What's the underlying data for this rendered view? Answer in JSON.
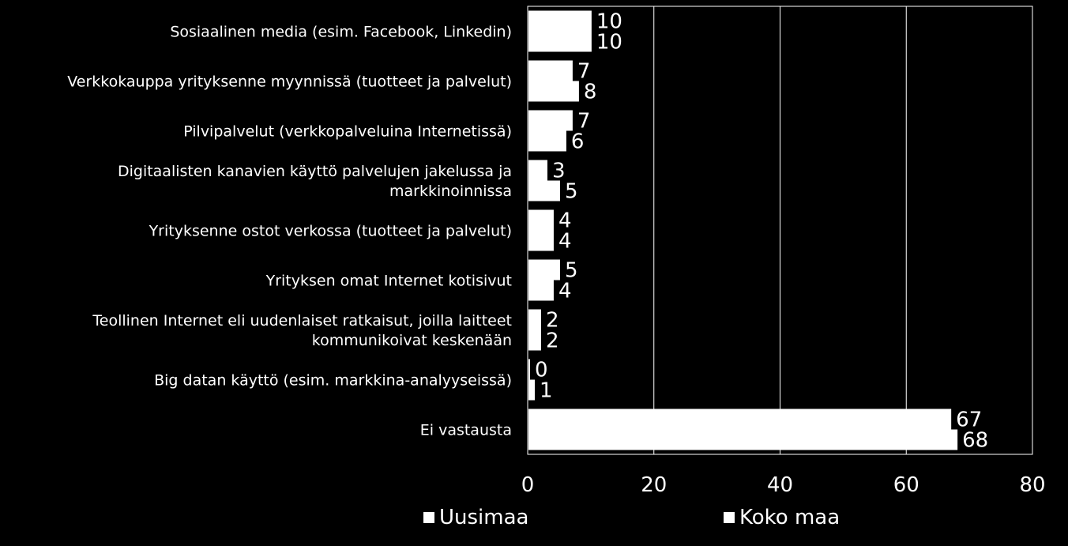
{
  "chart_data": {
    "type": "bar",
    "orientation": "horizontal",
    "categories": [
      "Sosiaalinen media (esim. Facebook, Linkedin)",
      "Verkkokauppa yrityksenne myynnissä (tuotteet ja palvelut)",
      "Pilvipalvelut  (verkkopalveluina Internetissä)",
      "Digitaalisten kanavien käyttö palvelujen jakelussa ja markkinoinnissa",
      "Yrityksenne ostot verkossa (tuotteet ja palvelut)",
      "Yrityksen omat Internet kotisivut",
      "Teollinen Internet eli uudenlaiset ratkaisut, joilla laitteet kommunikoivat keskenään",
      "Big datan käyttö (esim. markkina-analyyseissä)",
      "Ei vastausta"
    ],
    "category_lines": [
      [
        "Sosiaalinen media (esim. Facebook, Linkedin)"
      ],
      [
        "Verkkokauppa yrityksenne myynnissä (tuotteet ja palvelut)"
      ],
      [
        "Pilvipalvelut  (verkkopalveluina Internetissä)"
      ],
      [
        "Digitaalisten kanavien käyttö palvelujen jakelussa ja",
        "markkinoinnissa"
      ],
      [
        "Yrityksenne ostot verkossa (tuotteet ja palvelut)"
      ],
      [
        "Yrityksen omat Internet kotisivut"
      ],
      [
        "Teollinen Internet eli uudenlaiset ratkaisut, joilla laitteet",
        "kommunikoivat keskenään"
      ],
      [
        "Big datan käyttö (esim. markkina-analyyseissä)"
      ],
      [
        "Ei vastausta"
      ]
    ],
    "series": [
      {
        "name": "Uusimaa",
        "values": [
          10,
          7,
          7,
          3,
          4,
          5,
          2,
          0,
          67
        ],
        "labels": [
          "10",
          "7",
          "7",
          "3",
          "4",
          "5",
          "2",
          "0",
          "67"
        ]
      },
      {
        "name": "Koko maa",
        "values": [
          10,
          8,
          6,
          5,
          4,
          4,
          2,
          1,
          68
        ],
        "labels": [
          "10",
          "8",
          "6",
          "5",
          "4",
          "4",
          "2",
          "1",
          "68"
        ]
      }
    ],
    "xlim": [
      0,
      80
    ],
    "xticks": [
      "0",
      "20",
      "40",
      "60",
      "80"
    ],
    "xtick_values": [
      0,
      20,
      40,
      60,
      80
    ],
    "grid": true,
    "legend_position": "bottom",
    "colors": {
      "background": "#000000",
      "bars": "#ffffff",
      "text": "#ffffff",
      "grid": "#ffffff"
    }
  }
}
